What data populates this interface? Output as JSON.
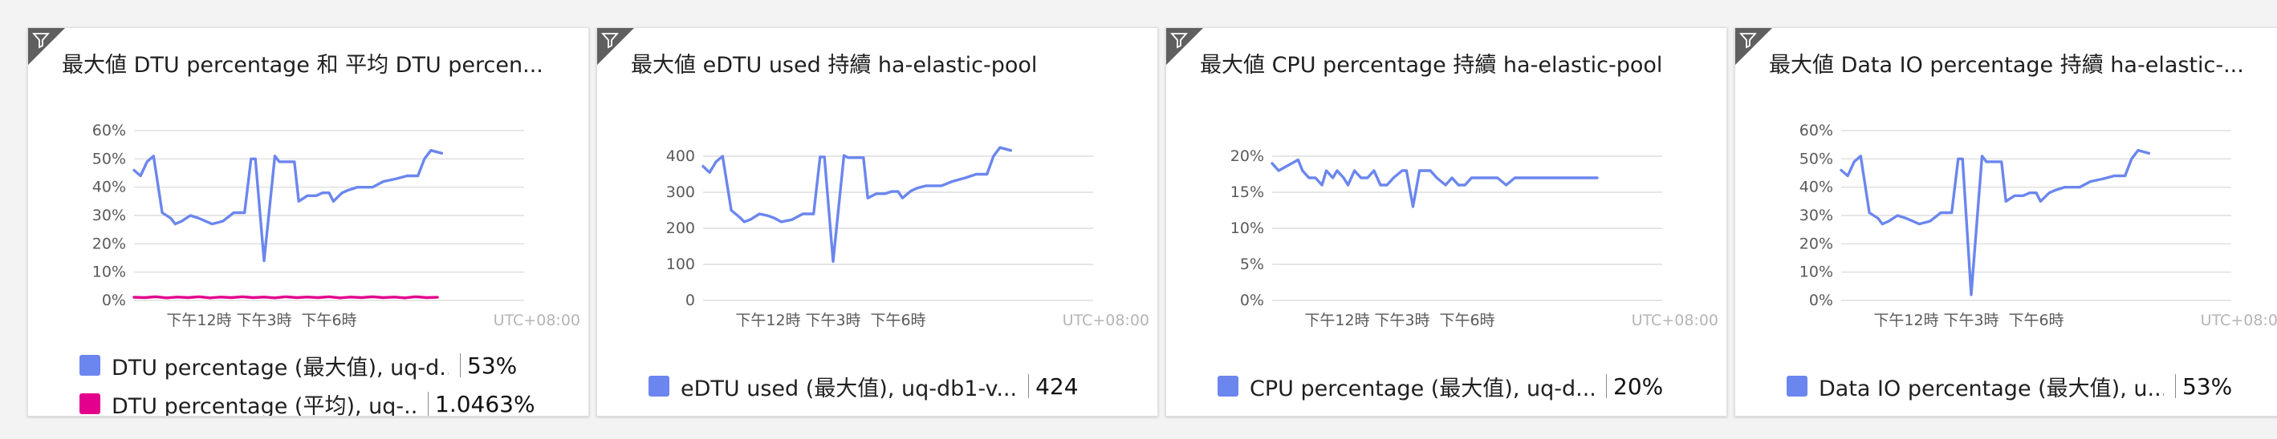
{
  "colors": {
    "series_blue": "#6b86ee",
    "series_magenta": "#e3008c",
    "grid": "#d8d8d8"
  },
  "icons": {
    "filter_badge": "filter-icon"
  },
  "tiles": [
    {
      "title": "最大値 DTU percentage 和 平均 DTU percen...",
      "legend": [
        {
          "name": "DTU percentage (最大值), uq-d...",
          "value": "53%",
          "color": "#6b86ee"
        },
        {
          "name": "DTU percentage (平均), uq-...",
          "value": "1.0463%",
          "color": "#e3008c"
        }
      ]
    },
    {
      "title": "最大値 eDTU used 持續 ha-elastic-pool",
      "legend": [
        {
          "name": "eDTU used (最大值), uq-db1-v...",
          "value": "424",
          "color": "#6b86ee"
        }
      ]
    },
    {
      "title": "最大値 CPU percentage 持續 ha-elastic-pool",
      "legend": [
        {
          "name": "CPU percentage (最大值), uq-d...",
          "value": "20%",
          "color": "#6b86ee"
        }
      ]
    },
    {
      "title": "最大値 Data IO percentage 持續 ha-elastic-...",
      "legend": [
        {
          "name": "Data IO percentage (最大值), u...",
          "value": "53%",
          "color": "#6b86ee"
        }
      ]
    }
  ],
  "chart_data": [
    {
      "type": "line",
      "title": "最大値 DTU percentage 和 平均 DTU percen...",
      "y_ticks": [
        "60%",
        "50%",
        "40%",
        "30%",
        "20%",
        "10%",
        "0%"
      ],
      "ylim": [
        0,
        60
      ],
      "x_ticks": [
        "下午12時",
        "下午3時",
        "下午6時"
      ],
      "x_ticks_pos": [
        3,
        6,
        9
      ],
      "xlim": [
        0,
        18
      ],
      "timezone_label": "UTC+08:00",
      "grid": true,
      "series": [
        {
          "name": "DTU percentage (最大值), uq-d...",
          "color": "#6b86ee",
          "x": [
            0,
            0.3,
            0.6,
            0.9,
            1.3,
            1.7,
            1.9,
            2.2,
            2.6,
            3.0,
            3.3,
            3.6,
            4.1,
            4.6,
            5.1,
            5.4,
            5.6,
            6.0,
            6.5,
            6.7,
            7.0,
            7.4,
            7.6,
            8.0,
            8.4,
            8.7,
            9.0,
            9.2,
            9.6,
            9.9,
            10.3,
            10.6,
            11.0,
            11.5,
            12.1,
            12.6,
            13.1,
            13.4,
            13.7,
            14.2
          ],
          "y": [
            46,
            44,
            49,
            51,
            31,
            29,
            27,
            28,
            30,
            29,
            28,
            27,
            28,
            31,
            31,
            50,
            50,
            14,
            51,
            49,
            49,
            49,
            35,
            37,
            37,
            38,
            38,
            35,
            38,
            39,
            40,
            40,
            40,
            42,
            43,
            44,
            44,
            50,
            53,
            52
          ]
        },
        {
          "name": "DTU percentage (平均), uq-...",
          "color": "#e3008c",
          "x": [
            0,
            0.5,
            1.0,
            1.5,
            2.0,
            2.5,
            3.0,
            3.5,
            4.0,
            4.5,
            5.0,
            5.5,
            6.0,
            6.5,
            7.0,
            7.5,
            8.0,
            8.5,
            9.0,
            9.5,
            10.0,
            10.5,
            11.0,
            11.5,
            12.0,
            12.5,
            13.0,
            13.5,
            14.0
          ],
          "y": [
            1.1,
            1.0,
            1.3,
            0.9,
            1.2,
            1.0,
            1.3,
            0.9,
            1.2,
            1.0,
            1.3,
            1.0,
            1.2,
            0.9,
            1.3,
            1.0,
            1.2,
            1.0,
            1.3,
            0.9,
            1.2,
            1.0,
            1.3,
            1.0,
            1.2,
            0.9,
            1.3,
            1.0,
            1.1
          ]
        }
      ]
    },
    {
      "type": "line",
      "title": "最大値 eDTU used 持續 ha-elastic-pool",
      "y_ticks": [
        "400",
        "300",
        "200",
        "100",
        "0"
      ],
      "ylim": [
        0,
        400
      ],
      "x_ticks": [
        "下午12時",
        "下午3時",
        "下午6時"
      ],
      "x_ticks_pos": [
        3,
        6,
        9
      ],
      "xlim": [
        0,
        18
      ],
      "timezone_label": "UTC+08:00",
      "grid": true,
      "series": [
        {
          "name": "eDTU used (最大值), uq-db1-v...",
          "color": "#6b86ee",
          "x": [
            0,
            0.3,
            0.6,
            0.9,
            1.3,
            1.7,
            1.9,
            2.2,
            2.6,
            3.0,
            3.3,
            3.6,
            4.1,
            4.6,
            5.1,
            5.4,
            5.6,
            6.0,
            6.5,
            6.7,
            7.0,
            7.4,
            7.6,
            8.0,
            8.4,
            8.7,
            9.0,
            9.2,
            9.6,
            9.9,
            10.3,
            10.6,
            11.0,
            11.5,
            12.1,
            12.6,
            13.1,
            13.4,
            13.7,
            14.2
          ],
          "y": [
            372,
            355,
            385,
            400,
            250,
            230,
            218,
            225,
            240,
            235,
            228,
            218,
            224,
            240,
            240,
            398,
            398,
            108,
            402,
            396,
            396,
            396,
            284,
            296,
            296,
            302,
            302,
            284,
            304,
            312,
            318,
            318,
            318,
            330,
            340,
            350,
            350,
            400,
            424,
            416
          ]
        }
      ]
    },
    {
      "type": "line",
      "title": "最大値 CPU percentage 持續 ha-elastic-pool",
      "y_ticks": [
        "20%",
        "15%",
        "10%",
        "5%",
        "0%"
      ],
      "ylim": [
        0,
        20
      ],
      "x_ticks": [
        "下午12時",
        "下午3時",
        "下午6時"
      ],
      "x_ticks_pos": [
        3,
        6,
        9
      ],
      "xlim": [
        0,
        18
      ],
      "timezone_label": "UTC+08:00",
      "grid": true,
      "series": [
        {
          "name": "CPU percentage (最大值), uq-d...",
          "color": "#6b86ee",
          "x": [
            0,
            0.3,
            0.6,
            0.9,
            1.2,
            1.4,
            1.7,
            2.0,
            2.3,
            2.5,
            2.8,
            3.0,
            3.3,
            3.5,
            3.8,
            4.1,
            4.4,
            4.7,
            5.0,
            5.3,
            5.6,
            6.0,
            6.2,
            6.5,
            6.8,
            7.0,
            7.3,
            7.6,
            8.0,
            8.3,
            8.6,
            8.9,
            9.2,
            9.6,
            10.0,
            10.4,
            10.8,
            11.2,
            11.6,
            12.0,
            12.5,
            13.0,
            13.5,
            14.0,
            14.5,
            15.0
          ],
          "y": [
            19,
            18,
            18.5,
            19,
            19.5,
            18,
            17,
            17,
            16,
            18,
            17,
            18,
            17,
            16,
            18,
            17,
            17,
            18,
            16,
            16,
            17,
            18,
            18,
            13,
            18,
            18,
            18,
            17,
            16,
            17,
            16,
            16,
            17,
            17,
            17,
            17,
            16,
            17,
            17,
            17,
            17,
            17,
            17,
            17,
            17,
            17
          ]
        }
      ]
    },
    {
      "type": "line",
      "title": "最大値 Data IO percentage 持續 ha-elastic-...",
      "y_ticks": [
        "60%",
        "50%",
        "40%",
        "30%",
        "20%",
        "10%",
        "0%"
      ],
      "ylim": [
        0,
        60
      ],
      "x_ticks": [
        "下午12時",
        "下午3時",
        "下午6時"
      ],
      "x_ticks_pos": [
        3,
        6,
        9
      ],
      "xlim": [
        0,
        18
      ],
      "timezone_label": "UTC+08:00",
      "grid": true,
      "series": [
        {
          "name": "Data IO percentage (最大值), u...",
          "color": "#6b86ee",
          "x": [
            0,
            0.3,
            0.6,
            0.9,
            1.3,
            1.7,
            1.9,
            2.2,
            2.6,
            3.0,
            3.3,
            3.6,
            4.1,
            4.6,
            5.1,
            5.4,
            5.6,
            6.0,
            6.5,
            6.7,
            7.0,
            7.4,
            7.6,
            8.0,
            8.4,
            8.7,
            9.0,
            9.2,
            9.6,
            9.9,
            10.3,
            10.6,
            11.0,
            11.5,
            12.1,
            12.6,
            13.1,
            13.4,
            13.7,
            14.2
          ],
          "y": [
            46,
            44,
            49,
            51,
            31,
            29,
            27,
            28,
            30,
            29,
            28,
            27,
            28,
            31,
            31,
            50,
            50,
            2,
            51,
            49,
            49,
            49,
            35,
            37,
            37,
            38,
            38,
            35,
            38,
            39,
            40,
            40,
            40,
            42,
            43,
            44,
            44,
            50,
            53,
            52
          ]
        }
      ]
    }
  ]
}
